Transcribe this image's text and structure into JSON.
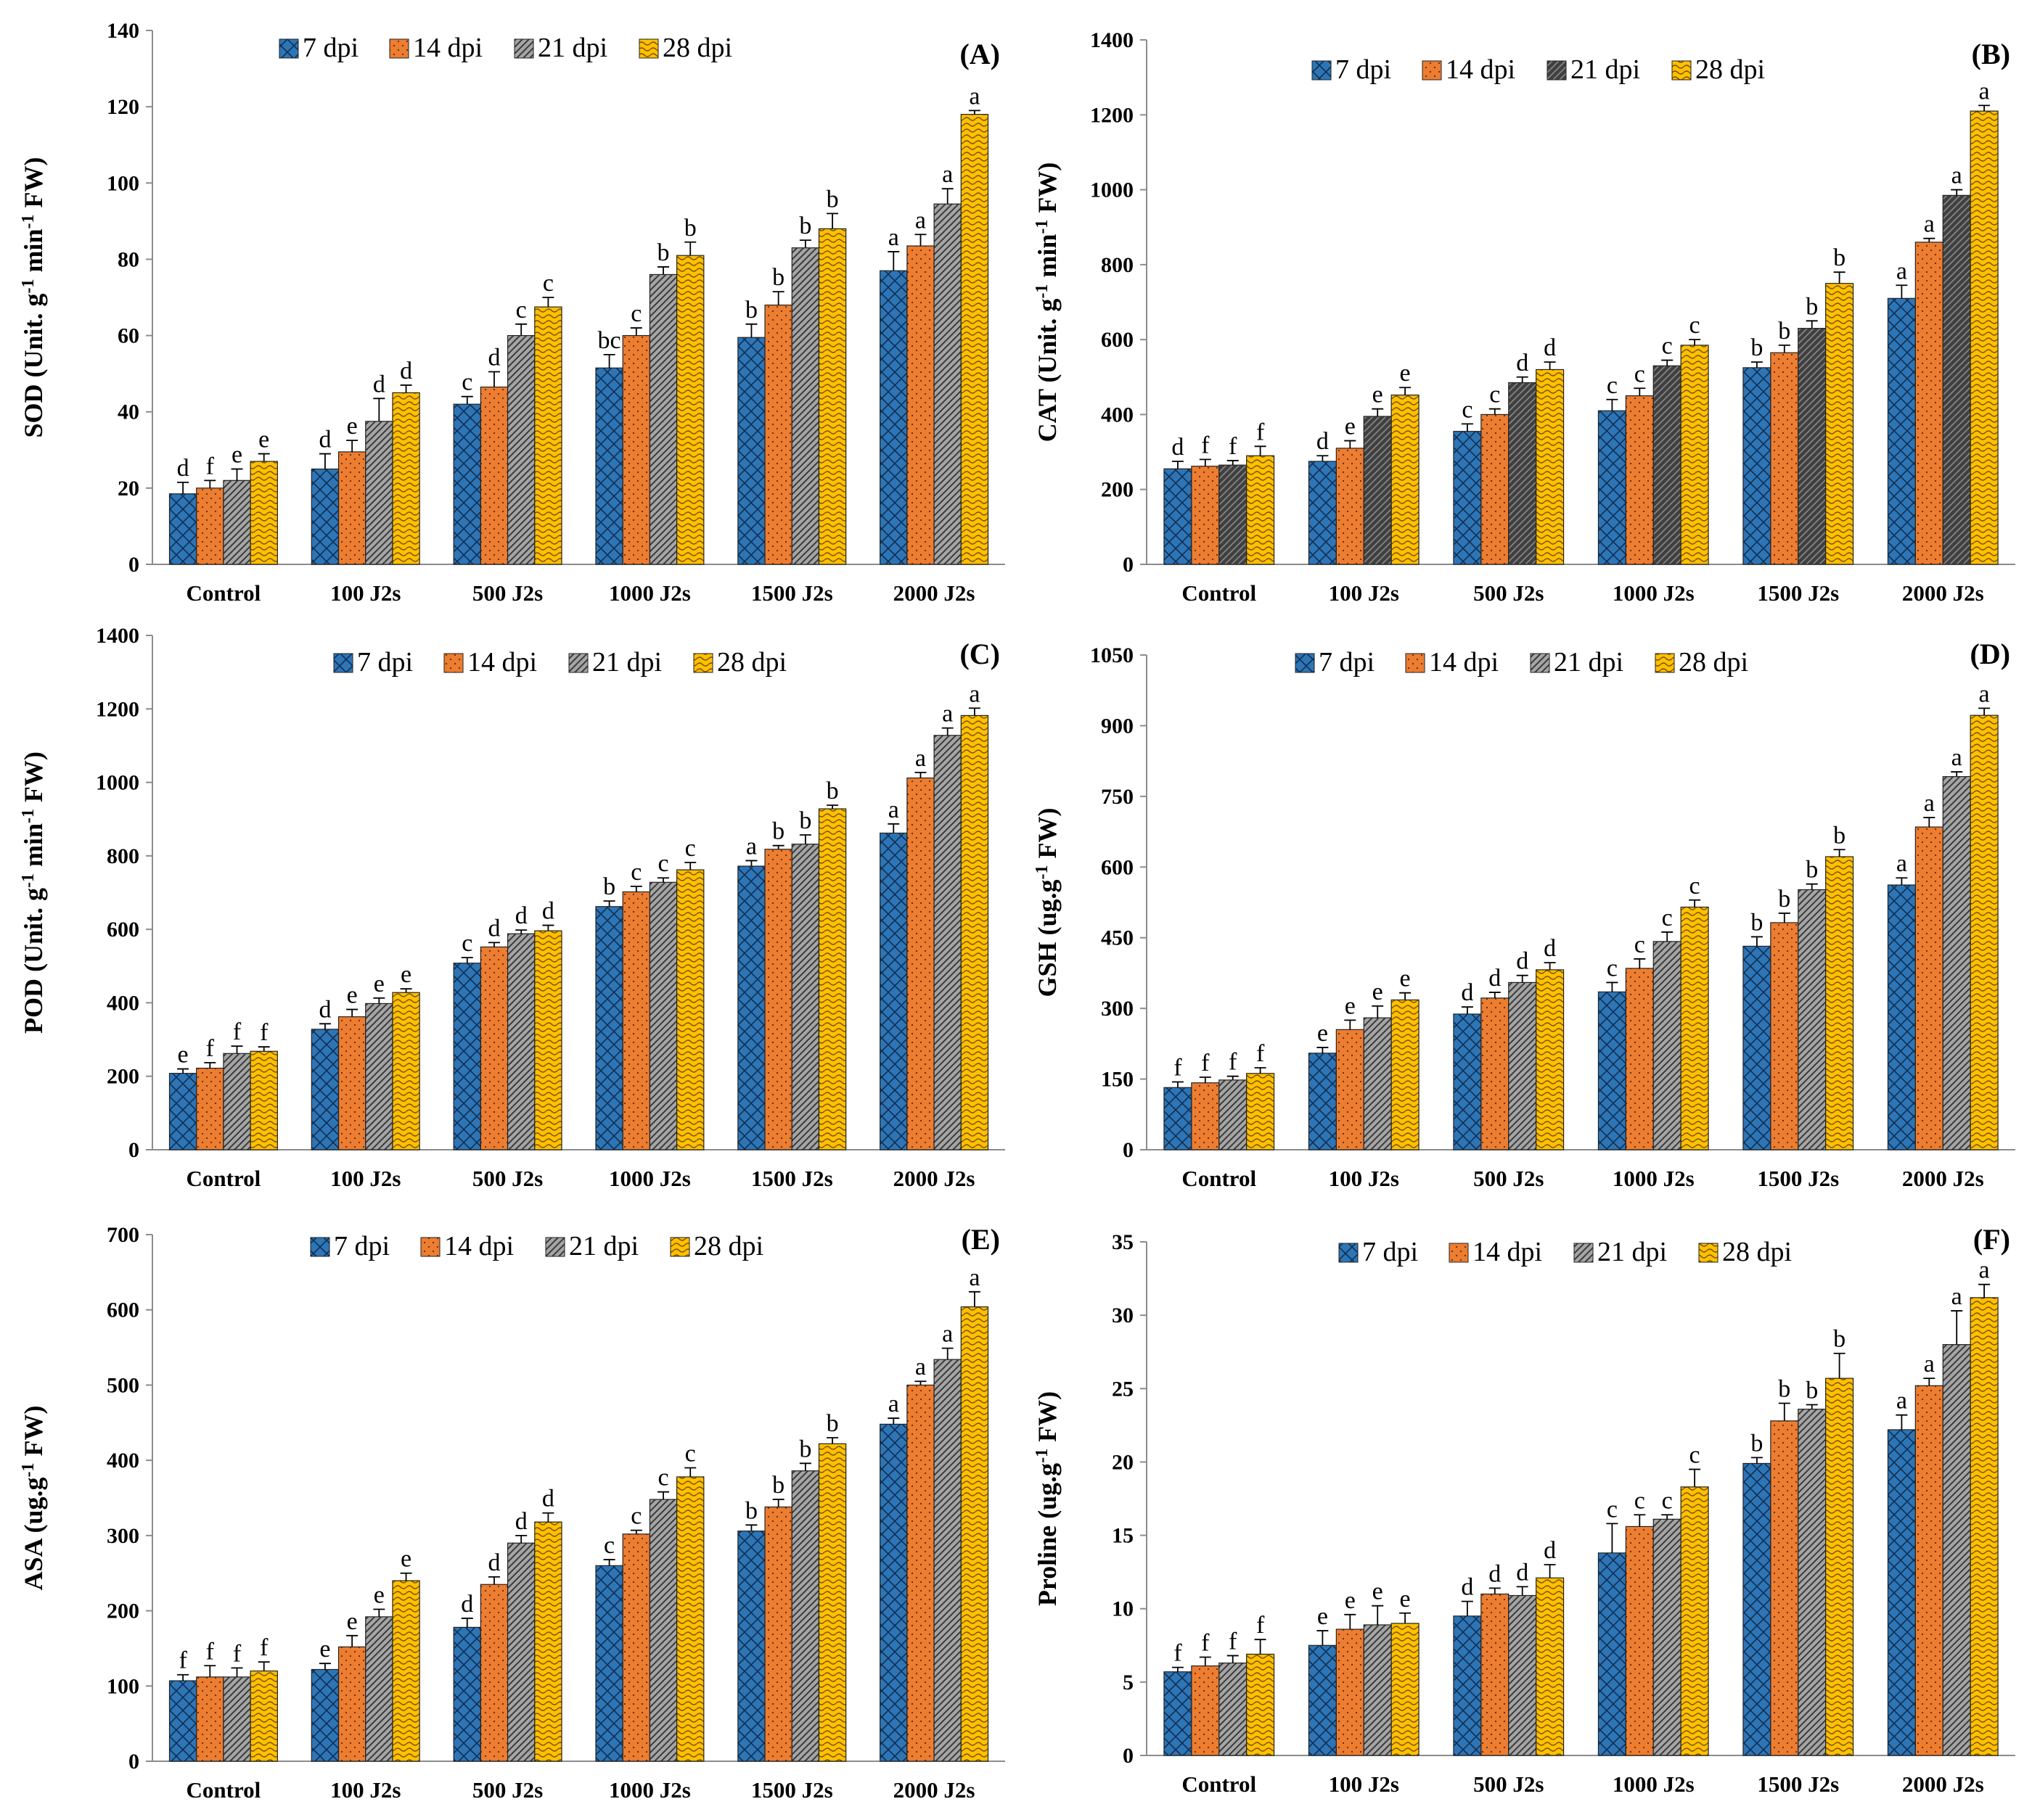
{
  "colors": {
    "7 dpi": "#2e75b6",
    "14 dpi": "#ed7d31",
    "21 dpi": "#a5a5a5",
    "28 dpi": "#ffc000",
    "21 dpi (B)": "#4a4a4a"
  },
  "chart_data": [
    {
      "type": "bar",
      "panel_label": "(A)",
      "ylabel": [
        "SOD (Unit. g",
        "-1",
        " min",
        "-1",
        " FW)"
      ],
      "ylim": [
        0,
        140
      ],
      "yticks": [
        0,
        20,
        40,
        60,
        80,
        100,
        120,
        140
      ],
      "categories": [
        "Control",
        "100 J2s",
        "500 J2s",
        "1000 J2s",
        "1500 J2s",
        "2000 J2s"
      ],
      "series": [
        {
          "name": "7 dpi",
          "values": [
            18.5,
            25,
            42,
            51.5,
            59.5,
            77
          ],
          "errors": [
            3,
            4,
            2,
            3.5,
            3.5,
            5
          ],
          "letters": [
            "d",
            "d",
            "c",
            "bc",
            "b",
            "a"
          ]
        },
        {
          "name": "14 dpi",
          "values": [
            20,
            29.5,
            46.5,
            60,
            68,
            83.5
          ],
          "errors": [
            2,
            3,
            4,
            2,
            3.5,
            3
          ],
          "letters": [
            "f",
            "e",
            "d",
            "c",
            "b",
            "a"
          ]
        },
        {
          "name": "21 dpi",
          "values": [
            22,
            37.5,
            60,
            76,
            83,
            94.5
          ],
          "errors": [
            3,
            6,
            3,
            2,
            2,
            4
          ],
          "letters": [
            "e",
            "d",
            "c",
            "b",
            "b",
            "a"
          ]
        },
        {
          "name": "28 dpi",
          "values": [
            27,
            45,
            67.5,
            81,
            88,
            118
          ],
          "errors": [
            2,
            2,
            2.5,
            3.5,
            4,
            1
          ],
          "letters": [
            "e",
            "d",
            "c",
            "b",
            "b",
            "a"
          ]
        }
      ]
    },
    {
      "type": "bar",
      "panel_label": "(B)",
      "ylabel": [
        "CAT (Unit. g",
        "-1",
        " min",
        "-1",
        " FW)"
      ],
      "ylim": [
        0,
        1400
      ],
      "yticks": [
        0,
        200,
        400,
        600,
        800,
        1000,
        1200,
        1400
      ],
      "categories": [
        "Control",
        "100 J2s",
        "500 J2s",
        "1000 J2s",
        "1500 J2s",
        "2000 J2s"
      ],
      "series": [
        {
          "name": "7 dpi",
          "values": [
            255,
            275,
            355,
            410,
            525,
            710
          ],
          "errors": [
            20,
            15,
            20,
            30,
            15,
            35
          ],
          "letters": [
            "d",
            "d",
            "c",
            "c",
            "b",
            "a"
          ]
        },
        {
          "name": "14 dpi",
          "values": [
            262,
            310,
            400,
            450,
            565,
            860
          ],
          "errors": [
            18,
            20,
            15,
            20,
            20,
            10
          ],
          "letters": [
            "f",
            "e",
            "c",
            "c",
            "b",
            "a"
          ]
        },
        {
          "name": "21 dpi",
          "values": [
            265,
            395,
            485,
            530,
            630,
            985
          ],
          "errors": [
            12,
            20,
            15,
            15,
            20,
            15
          ],
          "letters": [
            "f",
            "e",
            "d",
            "c",
            "b",
            "a"
          ]
        },
        {
          "name": "28 dpi",
          "values": [
            290,
            452,
            520,
            585,
            750,
            1210
          ],
          "errors": [
            25,
            20,
            20,
            15,
            30,
            15
          ],
          "letters": [
            "f",
            "e",
            "d",
            "c",
            "b",
            "a"
          ]
        }
      ]
    },
    {
      "type": "bar",
      "panel_label": "(C)",
      "ylabel": [
        "POD (Unit. g",
        "-1",
        " min",
        "-1",
        " FW)"
      ],
      "ylim": [
        0,
        1400
      ],
      "yticks": [
        0,
        200,
        400,
        600,
        800,
        1000,
        1200,
        1400
      ],
      "categories": [
        "Control",
        "100 J2s",
        "500 J2s",
        "1000 J2s",
        "1500 J2s",
        "2000 J2s"
      ],
      "series": [
        {
          "name": "7 dpi",
          "values": [
            208,
            328,
            508,
            662,
            772,
            862
          ],
          "errors": [
            12,
            15,
            15,
            15,
            15,
            25
          ],
          "letters": [
            "e",
            "d",
            "c",
            "b",
            "a",
            "a"
          ]
        },
        {
          "name": "14 dpi",
          "values": [
            222,
            362,
            552,
            702,
            818,
            1012
          ],
          "errors": [
            15,
            20,
            12,
            15,
            10,
            15
          ],
          "letters": [
            "f",
            "e",
            "d",
            "c",
            "b",
            "a"
          ]
        },
        {
          "name": "21 dpi",
          "values": [
            262,
            398,
            588,
            728,
            832,
            1128
          ],
          "errors": [
            20,
            15,
            10,
            12,
            25,
            20
          ],
          "letters": [
            "f",
            "e",
            "d",
            "c",
            "b",
            "a"
          ]
        },
        {
          "name": "28 dpi",
          "values": [
            268,
            428,
            596,
            762,
            928,
            1182
          ],
          "errors": [
            12,
            10,
            15,
            20,
            10,
            20
          ],
          "letters": [
            "f",
            "e",
            "d",
            "c",
            "b",
            "a"
          ]
        }
      ]
    },
    {
      "type": "bar",
      "panel_label": "(D)",
      "ylabel": [
        "GSH (ug.g",
        "-1",
        " FW)"
      ],
      "ylim": [
        0,
        1050
      ],
      "yticks": [
        0,
        150,
        300,
        450,
        600,
        750,
        900,
        1050
      ],
      "categories": [
        "Control",
        "100 J2s",
        "500 J2s",
        "1000 J2s",
        "1500 J2s",
        "2000 J2s"
      ],
      "series": [
        {
          "name": "7 dpi",
          "values": [
            132,
            205,
            288,
            335,
            432,
            562
          ],
          "errors": [
            12,
            12,
            15,
            20,
            20,
            15
          ],
          "letters": [
            "f",
            "e",
            "d",
            "c",
            "b",
            "a"
          ]
        },
        {
          "name": "14 dpi",
          "values": [
            142,
            255,
            322,
            385,
            482,
            685
          ],
          "errors": [
            12,
            20,
            12,
            20,
            20,
            20
          ],
          "letters": [
            "f",
            "e",
            "d",
            "c",
            "b",
            "a"
          ]
        },
        {
          "name": "21 dpi",
          "values": [
            148,
            280,
            355,
            442,
            552,
            792
          ],
          "errors": [
            8,
            25,
            15,
            20,
            12,
            10
          ],
          "letters": [
            "f",
            "e",
            "d",
            "c",
            "b",
            "a"
          ]
        },
        {
          "name": "28 dpi",
          "values": [
            162,
            318,
            382,
            515,
            622,
            922
          ],
          "errors": [
            12,
            15,
            15,
            15,
            15,
            15
          ],
          "letters": [
            "f",
            "e",
            "d",
            "c",
            "b",
            "a"
          ]
        }
      ]
    },
    {
      "type": "bar",
      "panel_label": "(E)",
      "ylabel": [
        "ASA (ug.g",
        "-1",
        " FW)"
      ],
      "ylim": [
        0,
        700
      ],
      "yticks": [
        0,
        100,
        200,
        300,
        400,
        500,
        600,
        700
      ],
      "categories": [
        "Control",
        "100 J2s",
        "500 J2s",
        "1000 J2s",
        "1500 J2s",
        "2000 J2s"
      ],
      "series": [
        {
          "name": "7 dpi",
          "values": [
            107,
            122,
            178,
            260,
            306,
            448
          ],
          "errors": [
            8,
            8,
            12,
            8,
            8,
            8
          ],
          "letters": [
            "f",
            "e",
            "d",
            "c",
            "b",
            "a"
          ]
        },
        {
          "name": "14 dpi",
          "values": [
            112,
            152,
            235,
            302,
            338,
            500
          ],
          "errors": [
            15,
            15,
            10,
            5,
            10,
            5
          ],
          "letters": [
            "f",
            "e",
            "d",
            "c",
            "b",
            "a"
          ]
        },
        {
          "name": "21 dpi",
          "values": [
            112,
            192,
            290,
            348,
            386,
            534
          ],
          "errors": [
            12,
            10,
            10,
            10,
            10,
            15
          ],
          "letters": [
            "f",
            "e",
            "d",
            "c",
            "b",
            "a"
          ]
        },
        {
          "name": "28 dpi",
          "values": [
            120,
            240,
            318,
            378,
            422,
            604
          ],
          "errors": [
            12,
            10,
            12,
            12,
            8,
            20
          ],
          "letters": [
            "f",
            "e",
            "d",
            "c",
            "b",
            "a"
          ]
        }
      ]
    },
    {
      "type": "bar",
      "panel_label": "(F)",
      "ylabel": [
        "Proline  (ug.g",
        "-1",
        " FW)"
      ],
      "ylim": [
        0,
        35
      ],
      "yticks": [
        0,
        5,
        10,
        15,
        20,
        25,
        30,
        35
      ],
      "categories": [
        "Control",
        "100 J2s",
        "500 J2s",
        "1000 J2s",
        "1500 J2s",
        "2000 J2s"
      ],
      "series": [
        {
          "name": "7 dpi",
          "values": [
            5.7,
            7.5,
            9.5,
            13.8,
            19.9,
            22.2
          ],
          "errors": [
            0.3,
            1.0,
            1.0,
            2.0,
            0.4,
            1.0
          ],
          "letters": [
            "f",
            "e",
            "d",
            "c",
            "b",
            "a"
          ]
        },
        {
          "name": "14 dpi",
          "values": [
            6.1,
            8.6,
            11.0,
            15.6,
            22.8,
            25.2
          ],
          "errors": [
            0.6,
            1.0,
            0.4,
            0.8,
            1.2,
            0.5
          ],
          "letters": [
            "f",
            "e",
            "d",
            "c",
            "b",
            "a"
          ]
        },
        {
          "name": "21 dpi",
          "values": [
            6.3,
            8.9,
            10.9,
            16.1,
            23.6,
            28.0
          ],
          "errors": [
            0.5,
            1.3,
            0.6,
            0.3,
            0.3,
            2.3
          ],
          "letters": [
            "f",
            "e",
            "d",
            "c",
            "b",
            "a"
          ]
        },
        {
          "name": "28 dpi",
          "values": [
            6.9,
            9.0,
            12.1,
            18.3,
            25.7,
            31.2
          ],
          "errors": [
            1.0,
            0.7,
            0.9,
            1.2,
            1.7,
            0.9
          ],
          "letters": [
            "f",
            "e",
            "d",
            "c",
            "b",
            "a"
          ]
        }
      ]
    }
  ]
}
